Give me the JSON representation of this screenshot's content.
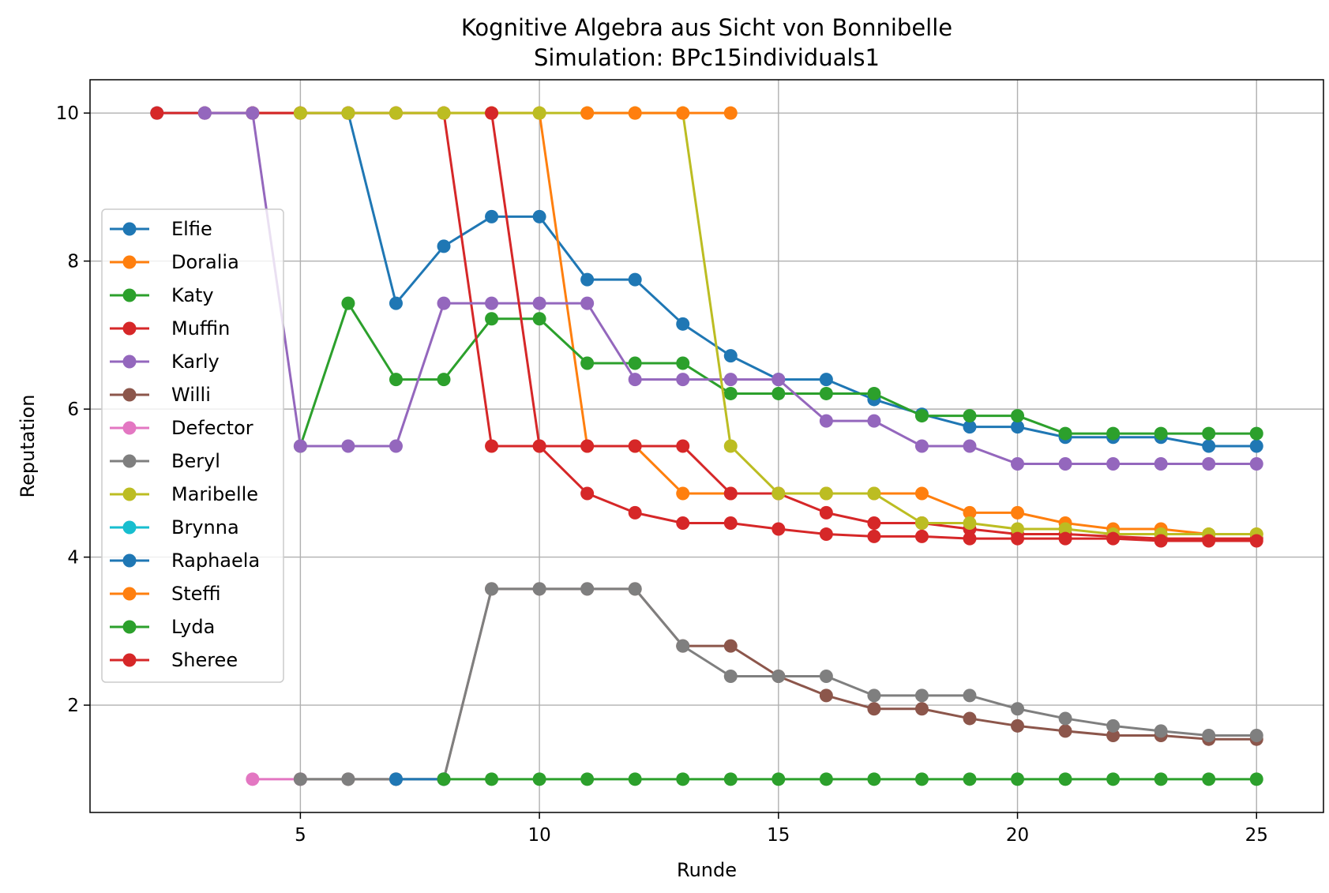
{
  "chart_data": {
    "type": "line",
    "title": "Kognitive Algebra aus Sicht von Bonnibelle",
    "subtitle": "Simulation: BPc15individuals1",
    "xlabel": "Runde",
    "ylabel": "Reputation",
    "xlim": [
      0.6,
      26.4
    ],
    "ylim": [
      0.55,
      10.45
    ],
    "xticks": [
      5,
      10,
      15,
      20,
      25
    ],
    "yticks": [
      2,
      4,
      6,
      8,
      10
    ],
    "grid": true,
    "legend_position": "center-left",
    "series": [
      {
        "name": "Elfie",
        "color": "#1f77b4",
        "x": [
          2,
          3,
          4,
          5,
          6,
          7,
          8,
          9,
          10,
          11,
          12,
          13,
          14,
          15,
          16,
          17,
          18,
          19,
          20,
          21,
          22,
          23,
          24,
          25
        ],
        "y": [
          10,
          10,
          10,
          10,
          10,
          7.43,
          8.2,
          8.6,
          8.6,
          7.75,
          7.75,
          7.15,
          6.72,
          6.4,
          6.4,
          6.13,
          5.93,
          5.76,
          5.76,
          5.62,
          5.62,
          5.62,
          5.5,
          5.5
        ]
      },
      {
        "name": "Doralia",
        "color": "#ff7f0e",
        "x": [
          4,
          5,
          6,
          7,
          8,
          9,
          10,
          11,
          12,
          13,
          14,
          15,
          16,
          17,
          18,
          19,
          20,
          21,
          22,
          23,
          24,
          25
        ],
        "y": [
          10,
          10,
          10,
          10,
          10,
          10,
          10,
          5.5,
          5.5,
          4.86,
          4.86,
          4.86,
          4.86,
          4.86,
          4.86,
          4.6,
          4.6,
          4.46,
          4.38,
          4.38,
          4.31,
          4.31
        ]
      },
      {
        "name": "Katy",
        "color": "#2ca02c",
        "x": [
          5,
          6,
          7,
          8,
          9,
          10,
          11,
          12,
          13,
          14,
          15,
          16,
          17,
          18,
          19,
          20,
          21,
          22,
          23,
          24,
          25
        ],
        "y": [
          5.5,
          7.43,
          6.4,
          6.4,
          7.22,
          7.22,
          6.62,
          6.62,
          6.62,
          6.21,
          6.21,
          6.21,
          6.21,
          5.91,
          5.91,
          5.91,
          5.67,
          5.67,
          5.67,
          5.67,
          5.67
        ]
      },
      {
        "name": "Muffin",
        "color": "#d62728",
        "x": [
          2,
          3,
          4,
          5,
          6,
          7,
          8,
          9,
          10,
          11,
          12,
          13,
          14,
          15,
          16,
          17,
          18,
          19,
          20,
          21,
          22,
          23,
          24,
          25
        ],
        "y": [
          10,
          10,
          10,
          10,
          10,
          10,
          10,
          5.5,
          5.5,
          5.5,
          5.5,
          5.5,
          4.86,
          4.86,
          4.6,
          4.46,
          4.46,
          4.38,
          4.31,
          4.31,
          4.28,
          4.25,
          4.25,
          4.25
        ]
      },
      {
        "name": "Karly",
        "color": "#9467bd",
        "x": [
          3,
          4,
          5,
          6,
          7,
          8,
          9,
          10,
          11,
          12,
          13,
          14,
          15,
          16,
          17,
          18,
          19,
          20,
          21,
          22,
          23,
          24,
          25
        ],
        "y": [
          10,
          10,
          5.5,
          5.5,
          5.5,
          7.43,
          7.43,
          7.43,
          7.43,
          6.4,
          6.4,
          6.4,
          6.4,
          5.84,
          5.84,
          5.5,
          5.5,
          5.26,
          5.26,
          5.26,
          5.26,
          5.26,
          5.26
        ]
      },
      {
        "name": "Willi",
        "color": "#8c564b",
        "x": [
          5,
          6,
          7,
          8,
          9,
          10,
          11,
          12,
          13,
          14,
          15,
          16,
          17,
          18,
          19,
          20,
          21,
          22,
          23,
          24,
          25
        ],
        "y": [
          1,
          1,
          1,
          1,
          3.57,
          3.57,
          3.57,
          3.57,
          2.8,
          2.8,
          2.39,
          2.13,
          1.95,
          1.95,
          1.82,
          1.72,
          1.65,
          1.59,
          1.59,
          1.54,
          1.54
        ]
      },
      {
        "name": "Defector",
        "color": "#e377c2",
        "x": [
          4,
          5
        ],
        "y": [
          1,
          1
        ]
      },
      {
        "name": "Beryl",
        "color": "#7f7f7f",
        "x": [
          5,
          6,
          7,
          8,
          9,
          10,
          11,
          12,
          13,
          14,
          15,
          16,
          17,
          18,
          19,
          20,
          21,
          22,
          23,
          24,
          25
        ],
        "y": [
          1,
          1,
          1,
          1,
          3.57,
          3.57,
          3.57,
          3.57,
          2.8,
          2.39,
          2.39,
          2.39,
          2.13,
          2.13,
          2.13,
          1.95,
          1.82,
          1.72,
          1.65,
          1.59,
          1.59
        ]
      },
      {
        "name": "Maribelle",
        "color": "#bcbd22",
        "x": [
          5,
          6,
          7,
          8,
          9,
          10,
          11,
          12,
          13,
          14,
          15,
          16,
          17,
          18,
          19,
          20,
          21,
          22,
          23,
          24,
          25
        ],
        "y": [
          10,
          10,
          10,
          10,
          10,
          10,
          10,
          10,
          10,
          5.5,
          4.86,
          4.86,
          4.86,
          4.46,
          4.46,
          4.38,
          4.38,
          4.31,
          4.31,
          4.31,
          4.31
        ]
      },
      {
        "name": "Brynna",
        "color": "#17becf",
        "x": [],
        "y": []
      },
      {
        "name": "Raphaela",
        "color": "#1f77b4",
        "x": [
          7,
          8
        ],
        "y": [
          1,
          1
        ]
      },
      {
        "name": "Steffi",
        "color": "#ff7f0e",
        "x": [
          11,
          12,
          13,
          14
        ],
        "y": [
          10,
          10,
          10,
          10
        ]
      },
      {
        "name": "Lyda",
        "color": "#2ca02c",
        "x": [
          8,
          9,
          10,
          11,
          12,
          13,
          14,
          15,
          16,
          17,
          18,
          19,
          20,
          21,
          22,
          23,
          24,
          25
        ],
        "y": [
          1,
          1,
          1,
          1,
          1,
          1,
          1,
          1,
          1,
          1,
          1,
          1,
          1,
          1,
          1,
          1,
          1,
          1
        ]
      },
      {
        "name": "Sheree",
        "color": "#d62728",
        "x": [
          9,
          10,
          11,
          12,
          13,
          14,
          15,
          16,
          17,
          18,
          19,
          20,
          21,
          22,
          23,
          24,
          25
        ],
        "y": [
          10,
          5.5,
          4.86,
          4.6,
          4.46,
          4.46,
          4.38,
          4.31,
          4.28,
          4.28,
          4.25,
          4.25,
          4.25,
          4.25,
          4.22,
          4.22,
          4.22
        ]
      }
    ]
  }
}
